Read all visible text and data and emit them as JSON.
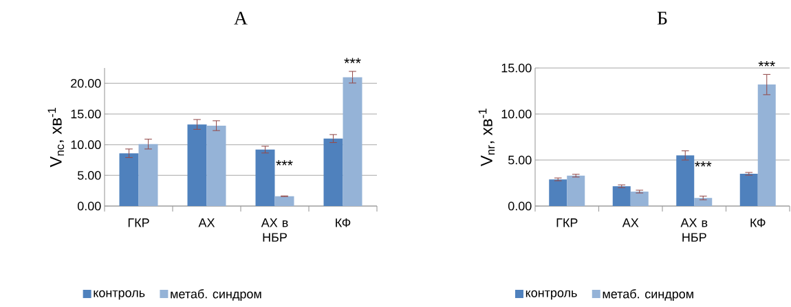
{
  "chart_data": [
    {
      "type": "bar",
      "title": "А",
      "ylabel": "V$_{nc}$, хв$^{-1}$",
      "categories": [
        "ГКР",
        "АХ",
        "АХ в НБР",
        "КФ"
      ],
      "series": [
        {
          "name": "контроль",
          "color": "#4f81bd",
          "values": [
            8.6,
            13.3,
            9.2,
            11.0
          ],
          "errors": [
            0.7,
            0.8,
            0.55,
            0.65
          ]
        },
        {
          "name": "метаб. синдром",
          "color": "#95b3d7",
          "values": [
            10.1,
            13.1,
            1.6,
            21.0
          ],
          "errors": [
            0.8,
            0.8,
            0.05,
            0.95
          ]
        }
      ],
      "ylim": [
        0,
        22.5
      ],
      "yticks": [
        {
          "value": 0,
          "label": "0.00"
        },
        {
          "value": 5,
          "label": "5.00"
        },
        {
          "value": 10,
          "label": "10.00"
        },
        {
          "value": 15,
          "label": "15.00"
        },
        {
          "value": 20,
          "label": "20.00"
        }
      ],
      "grid": "y",
      "legend": "bottom",
      "annotations": [
        {
          "text": "***",
          "x": "АХ в НБР",
          "y": 5.3
        },
        {
          "text": "***",
          "x": "КФ",
          "y": 21.0
        }
      ]
    },
    {
      "type": "bar",
      "title": "Б",
      "ylabel": "V$_{nr}$, хв$^{-1}$",
      "categories": [
        "ГКР",
        "АХ",
        "АХ в НБР",
        "КФ"
      ],
      "series": [
        {
          "name": "контроль",
          "color": "#4f81bd",
          "values": [
            2.9,
            2.15,
            5.5,
            3.5
          ],
          "errors": [
            0.15,
            0.15,
            0.5,
            0.15
          ]
        },
        {
          "name": "метаб. синдром",
          "color": "#95b3d7",
          "values": [
            3.3,
            1.57,
            0.88,
            13.2
          ],
          "errors": [
            0.15,
            0.15,
            0.2,
            1.1
          ]
        }
      ],
      "ylim": [
        0,
        15
      ],
      "yticks": [
        {
          "value": 0,
          "label": "0.00"
        },
        {
          "value": 5,
          "label": "5.00"
        },
        {
          "value": 10,
          "label": "10.00"
        },
        {
          "value": 15,
          "label": "15.00"
        }
      ],
      "grid": "y",
      "legend": "bottom",
      "annotations": [
        {
          "text": "***",
          "x": "АХ в НБР",
          "y": 3.4
        },
        {
          "text": "***",
          "x": "КФ",
          "y": 13.2
        }
      ]
    }
  ]
}
